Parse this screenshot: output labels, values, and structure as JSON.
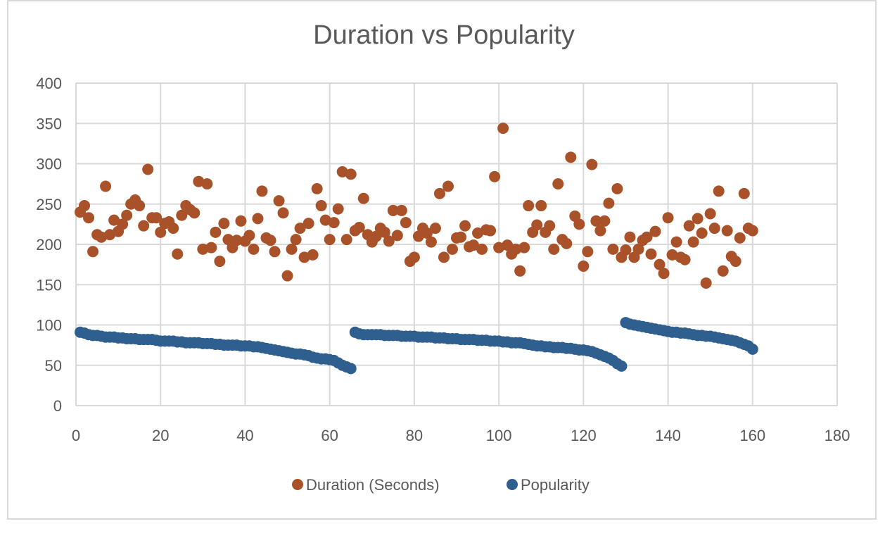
{
  "chart_data": {
    "type": "scatter",
    "title": "Duration vs Popularity",
    "xlabel": "",
    "ylabel": "",
    "xlim": [
      0,
      180
    ],
    "ylim": [
      0,
      400
    ],
    "x_ticks": [
      0,
      20,
      40,
      60,
      80,
      100,
      120,
      140,
      160,
      180
    ],
    "y_ticks": [
      0,
      50,
      100,
      150,
      200,
      250,
      300,
      350,
      400
    ],
    "grid": true,
    "legend_position": "bottom",
    "series": [
      {
        "name": "Duration (Seconds)",
        "color": "#a9522a",
        "points": [
          [
            1,
            240
          ],
          [
            2,
            248
          ],
          [
            3,
            233
          ],
          [
            4,
            191
          ],
          [
            5,
            212
          ],
          [
            6,
            209
          ],
          [
            7,
            272
          ],
          [
            8,
            212
          ],
          [
            9,
            230
          ],
          [
            10,
            216
          ],
          [
            11,
            225
          ],
          [
            12,
            236
          ],
          [
            13,
            250
          ],
          [
            14,
            255
          ],
          [
            15,
            248
          ],
          [
            16,
            223
          ],
          [
            17,
            293
          ],
          [
            18,
            233
          ],
          [
            19,
            233
          ],
          [
            20,
            215
          ],
          [
            21,
            226
          ],
          [
            22,
            228
          ],
          [
            23,
            220
          ],
          [
            24,
            188
          ],
          [
            25,
            236
          ],
          [
            26,
            248
          ],
          [
            27,
            243
          ],
          [
            28,
            239
          ],
          [
            29,
            278
          ],
          [
            30,
            194
          ],
          [
            31,
            275
          ],
          [
            32,
            196
          ],
          [
            33,
            215
          ],
          [
            34,
            179
          ],
          [
            35,
            226
          ],
          [
            36,
            206
          ],
          [
            37,
            196
          ],
          [
            38,
            205
          ],
          [
            39,
            229
          ],
          [
            40,
            204
          ],
          [
            41,
            211
          ],
          [
            42,
            194
          ],
          [
            43,
            232
          ],
          [
            44,
            266
          ],
          [
            45,
            208
          ],
          [
            46,
            205
          ],
          [
            47,
            191
          ],
          [
            48,
            254
          ],
          [
            49,
            239
          ],
          [
            50,
            161
          ],
          [
            51,
            194
          ],
          [
            52,
            206
          ],
          [
            53,
            220
          ],
          [
            54,
            184
          ],
          [
            55,
            226
          ],
          [
            56,
            187
          ],
          [
            57,
            269
          ],
          [
            58,
            248
          ],
          [
            59,
            230
          ],
          [
            60,
            206
          ],
          [
            61,
            227
          ],
          [
            62,
            244
          ],
          [
            63,
            290
          ],
          [
            64,
            206
          ],
          [
            65,
            287
          ],
          [
            66,
            217
          ],
          [
            67,
            221
          ],
          [
            68,
            257
          ],
          [
            69,
            212
          ],
          [
            70,
            203
          ],
          [
            71,
            210
          ],
          [
            72,
            220
          ],
          [
            73,
            215
          ],
          [
            74,
            204
          ],
          [
            75,
            242
          ],
          [
            76,
            211
          ],
          [
            77,
            242
          ],
          [
            78,
            227
          ],
          [
            79,
            179
          ],
          [
            80,
            184
          ],
          [
            81,
            210
          ],
          [
            82,
            220
          ],
          [
            83,
            214
          ],
          [
            84,
            203
          ],
          [
            85,
            220
          ],
          [
            86,
            263
          ],
          [
            87,
            184
          ],
          [
            88,
            272
          ],
          [
            89,
            194
          ],
          [
            90,
            208
          ],
          [
            91,
            209
          ],
          [
            92,
            223
          ],
          [
            93,
            197
          ],
          [
            94,
            199
          ],
          [
            95,
            214
          ],
          [
            96,
            194
          ],
          [
            97,
            218
          ],
          [
            98,
            217
          ],
          [
            99,
            284
          ],
          [
            100,
            196
          ],
          [
            101,
            344
          ],
          [
            102,
            199
          ],
          [
            103,
            188
          ],
          [
            104,
            194
          ],
          [
            105,
            167
          ],
          [
            106,
            196
          ],
          [
            107,
            248
          ],
          [
            108,
            215
          ],
          [
            109,
            224
          ],
          [
            110,
            248
          ],
          [
            111,
            215
          ],
          [
            112,
            223
          ],
          [
            113,
            194
          ],
          [
            114,
            275
          ],
          [
            115,
            206
          ],
          [
            116,
            201
          ],
          [
            117,
            308
          ],
          [
            118,
            235
          ],
          [
            119,
            225
          ],
          [
            120,
            173
          ],
          [
            121,
            191
          ],
          [
            122,
            299
          ],
          [
            123,
            229
          ],
          [
            124,
            217
          ],
          [
            125,
            229
          ],
          [
            126,
            251
          ],
          [
            127,
            194
          ],
          [
            128,
            269
          ],
          [
            129,
            184
          ],
          [
            130,
            193
          ],
          [
            131,
            209
          ],
          [
            132,
            184
          ],
          [
            133,
            194
          ],
          [
            134,
            205
          ],
          [
            135,
            209
          ],
          [
            136,
            188
          ],
          [
            137,
            216
          ],
          [
            138,
            175
          ],
          [
            139,
            164
          ],
          [
            140,
            233
          ],
          [
            141,
            187
          ],
          [
            142,
            203
          ],
          [
            143,
            184
          ],
          [
            144,
            181
          ],
          [
            145,
            223
          ],
          [
            146,
            203
          ],
          [
            147,
            232
          ],
          [
            148,
            214
          ],
          [
            149,
            152
          ],
          [
            150,
            238
          ],
          [
            151,
            220
          ],
          [
            152,
            266
          ],
          [
            153,
            167
          ],
          [
            154,
            217
          ],
          [
            155,
            185
          ],
          [
            156,
            179
          ],
          [
            157,
            208
          ],
          [
            158,
            263
          ],
          [
            159,
            220
          ],
          [
            160,
            217
          ]
        ]
      },
      {
        "name": "Popularity",
        "color": "#2e5f8f",
        "points": [
          [
            1,
            91
          ],
          [
            2,
            90
          ],
          [
            3,
            88
          ],
          [
            4,
            87
          ],
          [
            5,
            87
          ],
          [
            6,
            86
          ],
          [
            7,
            85
          ],
          [
            8,
            85
          ],
          [
            9,
            85
          ],
          [
            10,
            84
          ],
          [
            11,
            84
          ],
          [
            12,
            83
          ],
          [
            13,
            83
          ],
          [
            14,
            83
          ],
          [
            15,
            82
          ],
          [
            16,
            82
          ],
          [
            17,
            82
          ],
          [
            18,
            82
          ],
          [
            19,
            81
          ],
          [
            20,
            80
          ],
          [
            21,
            80
          ],
          [
            22,
            80
          ],
          [
            23,
            80
          ],
          [
            24,
            79
          ],
          [
            25,
            79
          ],
          [
            26,
            78
          ],
          [
            27,
            78
          ],
          [
            28,
            78
          ],
          [
            29,
            78
          ],
          [
            30,
            77
          ],
          [
            31,
            77
          ],
          [
            32,
            77
          ],
          [
            33,
            76
          ],
          [
            34,
            76
          ],
          [
            35,
            75
          ],
          [
            36,
            75
          ],
          [
            37,
            75
          ],
          [
            38,
            75
          ],
          [
            39,
            74
          ],
          [
            40,
            74
          ],
          [
            41,
            74
          ],
          [
            42,
            73
          ],
          [
            43,
            73
          ],
          [
            44,
            72
          ],
          [
            45,
            71
          ],
          [
            46,
            70
          ],
          [
            47,
            69
          ],
          [
            48,
            68
          ],
          [
            49,
            67
          ],
          [
            50,
            66
          ],
          [
            51,
            65
          ],
          [
            52,
            64
          ],
          [
            53,
            64
          ],
          [
            54,
            63
          ],
          [
            55,
            62
          ],
          [
            56,
            60
          ],
          [
            57,
            59
          ],
          [
            58,
            58
          ],
          [
            59,
            58
          ],
          [
            60,
            57
          ],
          [
            61,
            56
          ],
          [
            62,
            53
          ],
          [
            63,
            50
          ],
          [
            64,
            48
          ],
          [
            65,
            46
          ],
          [
            66,
            91
          ],
          [
            67,
            89
          ],
          [
            68,
            88
          ],
          [
            69,
            88
          ],
          [
            70,
            88
          ],
          [
            71,
            88
          ],
          [
            72,
            88
          ],
          [
            73,
            87
          ],
          [
            74,
            87
          ],
          [
            75,
            87
          ],
          [
            76,
            87
          ],
          [
            77,
            86
          ],
          [
            78,
            86
          ],
          [
            79,
            86
          ],
          [
            80,
            86
          ],
          [
            81,
            85
          ],
          [
            82,
            85
          ],
          [
            83,
            85
          ],
          [
            84,
            85
          ],
          [
            85,
            84
          ],
          [
            86,
            84
          ],
          [
            87,
            84
          ],
          [
            88,
            83
          ],
          [
            89,
            83
          ],
          [
            90,
            83
          ],
          [
            91,
            82
          ],
          [
            92,
            82
          ],
          [
            93,
            82
          ],
          [
            94,
            82
          ],
          [
            95,
            81
          ],
          [
            96,
            81
          ],
          [
            97,
            81
          ],
          [
            98,
            80
          ],
          [
            99,
            80
          ],
          [
            100,
            80
          ],
          [
            101,
            79
          ],
          [
            102,
            79
          ],
          [
            103,
            78
          ],
          [
            104,
            78
          ],
          [
            105,
            78
          ],
          [
            106,
            77
          ],
          [
            107,
            76
          ],
          [
            108,
            75
          ],
          [
            109,
            74
          ],
          [
            110,
            74
          ],
          [
            111,
            73
          ],
          [
            112,
            73
          ],
          [
            113,
            72
          ],
          [
            114,
            72
          ],
          [
            115,
            72
          ],
          [
            116,
            71
          ],
          [
            117,
            71
          ],
          [
            118,
            70
          ],
          [
            119,
            69
          ],
          [
            120,
            69
          ],
          [
            121,
            68
          ],
          [
            122,
            67
          ],
          [
            123,
            65
          ],
          [
            124,
            63
          ],
          [
            125,
            61
          ],
          [
            126,
            59
          ],
          [
            127,
            56
          ],
          [
            128,
            52
          ],
          [
            129,
            49
          ],
          [
            130,
            103
          ],
          [
            131,
            101
          ],
          [
            132,
            100
          ],
          [
            133,
            99
          ],
          [
            134,
            98
          ],
          [
            135,
            97
          ],
          [
            136,
            96
          ],
          [
            137,
            95
          ],
          [
            138,
            94
          ],
          [
            139,
            93
          ],
          [
            140,
            92
          ],
          [
            141,
            91
          ],
          [
            142,
            91
          ],
          [
            143,
            90
          ],
          [
            144,
            90
          ],
          [
            145,
            89
          ],
          [
            146,
            88
          ],
          [
            147,
            87
          ],
          [
            148,
            87
          ],
          [
            149,
            86
          ],
          [
            150,
            86
          ],
          [
            151,
            85
          ],
          [
            152,
            84
          ],
          [
            153,
            83
          ],
          [
            154,
            82
          ],
          [
            155,
            81
          ],
          [
            156,
            80
          ],
          [
            157,
            78
          ],
          [
            158,
            76
          ],
          [
            159,
            74
          ],
          [
            160,
            70
          ]
        ]
      }
    ]
  }
}
